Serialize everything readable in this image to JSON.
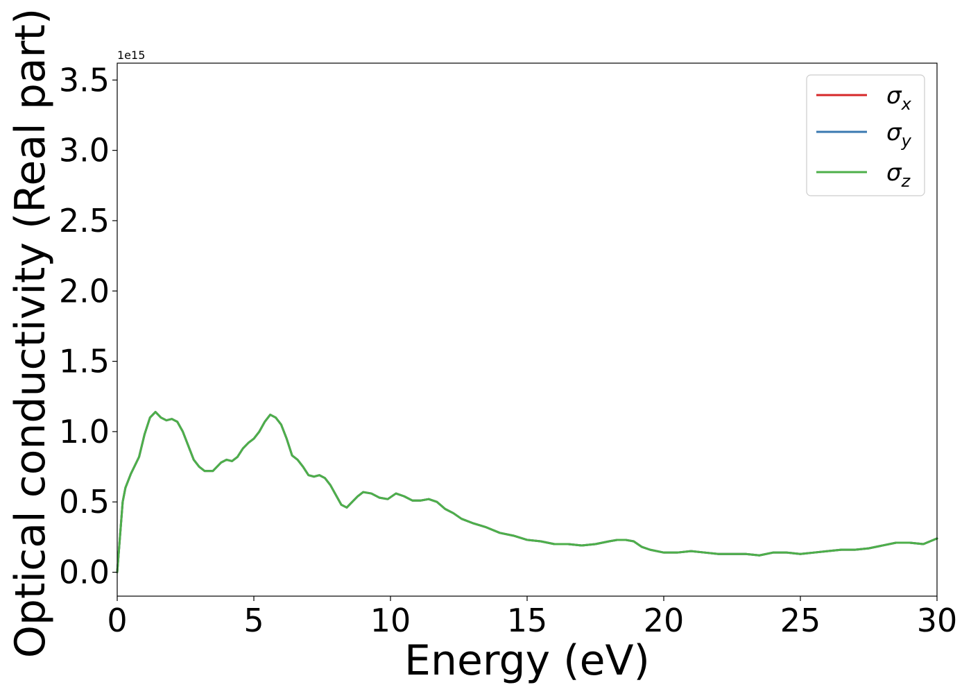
{
  "chart_data": {
    "type": "line",
    "xlabel": "Energy (eV)",
    "ylabel": "Optical conductivity (Real part)",
    "y_offset_text": "1e15",
    "xlim": [
      0,
      30
    ],
    "ylim": [
      -0.17,
      3.62
    ],
    "x_ticks": [
      0,
      5,
      10,
      15,
      20,
      25,
      30
    ],
    "x_tick_labels": [
      "0",
      "5",
      "10",
      "15",
      "20",
      "25",
      "30"
    ],
    "y_ticks": [
      0.0,
      0.5,
      1.0,
      1.5,
      2.0,
      2.5,
      3.0,
      3.5
    ],
    "y_tick_labels": [
      "0.0",
      "0.5",
      "1.0",
      "1.5",
      "2.0",
      "2.5",
      "3.0",
      "3.5"
    ],
    "grid": false,
    "legend_position": "top-right",
    "x": [
      0,
      0.1,
      0.2,
      0.3,
      0.5,
      0.8,
      1.0,
      1.2,
      1.4,
      1.6,
      1.8,
      2.0,
      2.2,
      2.4,
      2.6,
      2.8,
      3.0,
      3.2,
      3.5,
      3.8,
      4.0,
      4.2,
      4.4,
      4.6,
      4.8,
      5.0,
      5.2,
      5.4,
      5.6,
      5.8,
      6.0,
      6.2,
      6.4,
      6.6,
      6.8,
      7.0,
      7.2,
      7.4,
      7.6,
      7.8,
      8.0,
      8.2,
      8.4,
      8.6,
      8.8,
      9.0,
      9.3,
      9.6,
      9.9,
      10.2,
      10.5,
      10.8,
      11.1,
      11.4,
      11.7,
      12.0,
      12.3,
      12.6,
      13.0,
      13.5,
      14.0,
      14.5,
      15.0,
      15.5,
      16.0,
      16.5,
      17.0,
      17.5,
      18.0,
      18.3,
      18.6,
      18.9,
      19.2,
      19.5,
      20.0,
      20.5,
      21.0,
      21.5,
      22.0,
      22.5,
      23.0,
      23.5,
      24.0,
      24.5,
      25.0,
      25.5,
      26.0,
      26.5,
      27.0,
      27.5,
      28.0,
      28.5,
      29.0,
      29.5,
      30.0
    ],
    "series": [
      {
        "name": "σx",
        "color": "#d62728",
        "values": [
          0.0,
          0.25,
          0.5,
          0.6,
          0.7,
          0.82,
          0.98,
          1.1,
          1.14,
          1.1,
          1.08,
          1.09,
          1.07,
          1.0,
          0.9,
          0.8,
          0.75,
          0.72,
          0.72,
          0.78,
          0.8,
          0.79,
          0.82,
          0.88,
          0.92,
          0.95,
          1.0,
          1.07,
          1.12,
          1.1,
          1.05,
          0.95,
          0.83,
          0.8,
          0.75,
          0.69,
          0.68,
          0.69,
          0.67,
          0.62,
          0.55,
          0.48,
          0.46,
          0.5,
          0.54,
          0.57,
          0.56,
          0.53,
          0.52,
          0.56,
          0.54,
          0.51,
          0.51,
          0.52,
          0.5,
          0.45,
          0.42,
          0.38,
          0.35,
          0.32,
          0.28,
          0.26,
          0.23,
          0.22,
          0.2,
          0.2,
          0.19,
          0.2,
          0.22,
          0.23,
          0.23,
          0.22,
          0.18,
          0.16,
          0.14,
          0.14,
          0.15,
          0.14,
          0.13,
          0.13,
          0.13,
          0.12,
          0.14,
          0.14,
          0.13,
          0.14,
          0.15,
          0.16,
          0.16,
          0.17,
          0.19,
          0.21,
          0.21,
          0.2,
          0.24
        ]
      },
      {
        "name": "σy",
        "color": "#3a78b0",
        "values": [
          0.0,
          0.25,
          0.5,
          0.6,
          0.7,
          0.82,
          0.98,
          1.1,
          1.14,
          1.1,
          1.08,
          1.09,
          1.07,
          1.0,
          0.9,
          0.8,
          0.75,
          0.72,
          0.72,
          0.78,
          0.8,
          0.79,
          0.82,
          0.88,
          0.92,
          0.95,
          1.0,
          1.07,
          1.12,
          1.1,
          1.05,
          0.95,
          0.83,
          0.8,
          0.75,
          0.69,
          0.68,
          0.69,
          0.67,
          0.62,
          0.55,
          0.48,
          0.46,
          0.5,
          0.54,
          0.57,
          0.56,
          0.53,
          0.52,
          0.56,
          0.54,
          0.51,
          0.51,
          0.52,
          0.5,
          0.45,
          0.42,
          0.38,
          0.35,
          0.32,
          0.28,
          0.26,
          0.23,
          0.22,
          0.2,
          0.2,
          0.19,
          0.2,
          0.22,
          0.23,
          0.23,
          0.22,
          0.18,
          0.16,
          0.14,
          0.14,
          0.15,
          0.14,
          0.13,
          0.13,
          0.13,
          0.12,
          0.14,
          0.14,
          0.13,
          0.14,
          0.15,
          0.16,
          0.16,
          0.17,
          0.19,
          0.21,
          0.21,
          0.2,
          0.24
        ]
      },
      {
        "name": "σz",
        "color": "#4daf4a",
        "values": [
          0.0,
          0.25,
          0.5,
          0.6,
          0.7,
          0.82,
          0.98,
          1.1,
          1.14,
          1.1,
          1.08,
          1.09,
          1.07,
          1.0,
          0.9,
          0.8,
          0.75,
          0.72,
          0.72,
          0.78,
          0.8,
          0.79,
          0.82,
          0.88,
          0.92,
          0.95,
          1.0,
          1.07,
          1.12,
          1.1,
          1.05,
          0.95,
          0.83,
          0.8,
          0.75,
          0.69,
          0.68,
          0.69,
          0.67,
          0.62,
          0.55,
          0.48,
          0.46,
          0.5,
          0.54,
          0.57,
          0.56,
          0.53,
          0.52,
          0.56,
          0.54,
          0.51,
          0.51,
          0.52,
          0.5,
          0.45,
          0.42,
          0.38,
          0.35,
          0.32,
          0.28,
          0.26,
          0.23,
          0.22,
          0.2,
          0.2,
          0.19,
          0.2,
          0.22,
          0.23,
          0.23,
          0.22,
          0.18,
          0.16,
          0.14,
          0.14,
          0.15,
          0.14,
          0.13,
          0.13,
          0.13,
          0.12,
          0.14,
          0.14,
          0.13,
          0.14,
          0.15,
          0.16,
          0.16,
          0.17,
          0.19,
          0.21,
          0.21,
          0.2,
          0.24
        ]
      }
    ]
  },
  "legend": {
    "entries": [
      {
        "symbol": "σ",
        "subscript": "x"
      },
      {
        "symbol": "σ",
        "subscript": "y"
      },
      {
        "symbol": "σ",
        "subscript": "z"
      }
    ]
  }
}
